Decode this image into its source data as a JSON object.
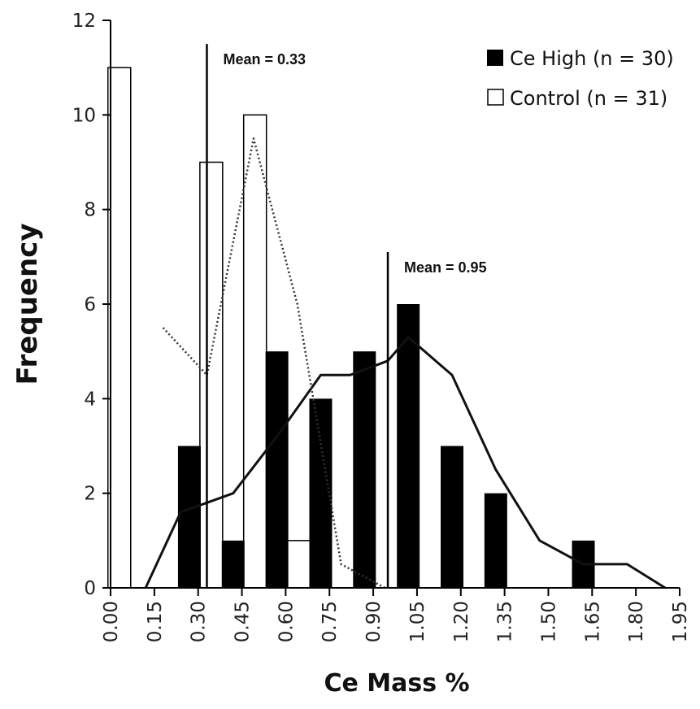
{
  "chart_data": {
    "type": "bar",
    "xlabel": "Ce Mass %",
    "ylabel": "Frequency",
    "x_ticks": [
      "0.00",
      "0.15",
      "0.30",
      "0.45",
      "0.60",
      "0.75",
      "0.90",
      "1.05",
      "1.20",
      "1.35",
      "1.50",
      "1.65",
      "1.80",
      "1.95"
    ],
    "y_ticks": [
      "0",
      "2",
      "4",
      "6",
      "8",
      "10",
      "12"
    ],
    "xlim": [
      0,
      1.95
    ],
    "ylim": [
      0,
      12
    ],
    "grid": false,
    "legend_position": "top-right",
    "series": [
      {
        "name": "Ce High (n = 30)",
        "style": "filled",
        "color": "#000000",
        "bars": [
          {
            "x": 0.27,
            "value": 3
          },
          {
            "x": 0.42,
            "value": 1
          },
          {
            "x": 0.57,
            "value": 5
          },
          {
            "x": 0.72,
            "value": 4
          },
          {
            "x": 0.87,
            "value": 5
          },
          {
            "x": 1.02,
            "value": 6
          },
          {
            "x": 1.17,
            "value": 3
          },
          {
            "x": 1.32,
            "value": 2
          },
          {
            "x": 1.62,
            "value": 1
          }
        ]
      },
      {
        "name": "Control (n = 31)",
        "style": "outline",
        "color": "#000000",
        "bars": [
          {
            "x": 0.03,
            "value": 11
          },
          {
            "x": 0.345,
            "value": 9
          },
          {
            "x": 0.495,
            "value": 10
          },
          {
            "x": 0.645,
            "value": 1
          }
        ]
      }
    ],
    "curves": [
      {
        "style": "solid",
        "points": [
          [
            0.12,
            0
          ],
          [
            0.24,
            1.6
          ],
          [
            0.42,
            2
          ],
          [
            0.57,
            3.2
          ],
          [
            0.72,
            4.5
          ],
          [
            0.82,
            4.5
          ],
          [
            0.95,
            4.8
          ],
          [
            1.02,
            5.3
          ],
          [
            1.17,
            4.5
          ],
          [
            1.32,
            2.5
          ],
          [
            1.47,
            1
          ],
          [
            1.62,
            0.5
          ],
          [
            1.72,
            0.5
          ],
          [
            1.77,
            0.5
          ],
          [
            1.9,
            0
          ]
        ]
      },
      {
        "style": "dotted",
        "points": [
          [
            0.18,
            5.5
          ],
          [
            0.33,
            4.5
          ],
          [
            0.49,
            9.5
          ],
          [
            0.64,
            6.0
          ],
          [
            0.79,
            0.5
          ],
          [
            0.94,
            0
          ]
        ]
      }
    ],
    "means": [
      {
        "x": 0.33,
        "label": "Mean = 0.33",
        "top": 11.5
      },
      {
        "x": 0.95,
        "label": "Mean = 0.95",
        "top": 7.1
      }
    ]
  }
}
